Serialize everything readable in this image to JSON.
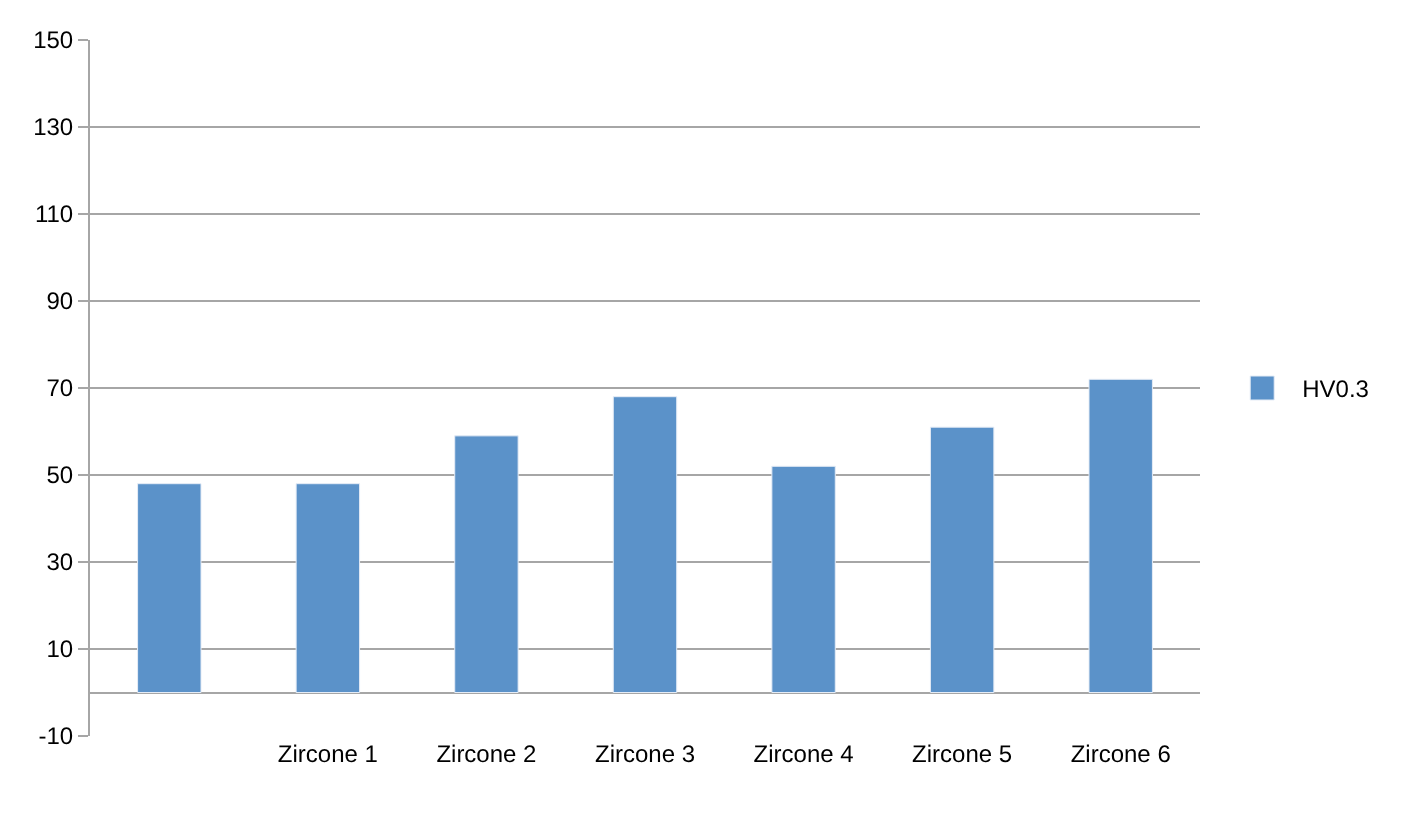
{
  "chart_data": {
    "type": "bar",
    "categories": [
      null,
      "Zircone 1",
      "Zircone 2",
      "Zircone 3",
      "Zircone 4",
      "Zircone 5",
      "Zircone 6"
    ],
    "series": [
      {
        "name": "HV0.3",
        "color": "#5b92c9",
        "values": [
          48,
          48,
          59,
          68,
          52,
          61,
          72
        ]
      }
    ],
    "ylim": [
      -10,
      150
    ],
    "yticks": [
      -10,
      10,
      30,
      50,
      70,
      90,
      110,
      130,
      150
    ],
    "grid": "y",
    "legend": "right"
  }
}
